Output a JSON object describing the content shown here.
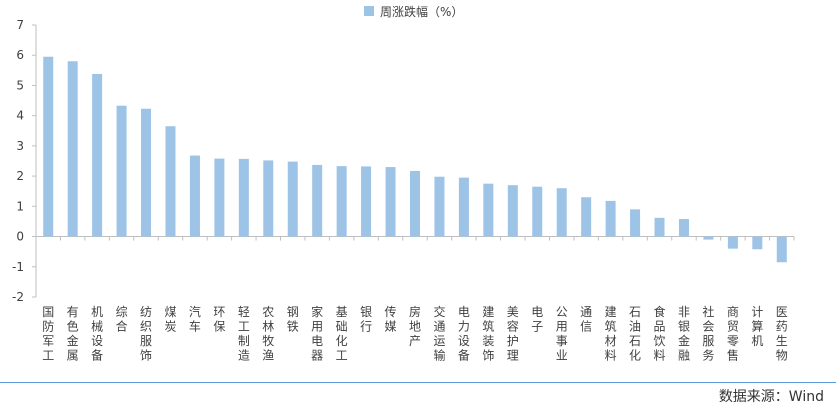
{
  "chart_data": {
    "type": "bar",
    "legend": {
      "label": "周涨跌幅（%）",
      "position": "top-center"
    },
    "categories": [
      "国防军工",
      "有色金属",
      "机械设备",
      "综合",
      "纺织服饰",
      "煤炭",
      "汽车",
      "环保",
      "轻工制造",
      "农林牧渔",
      "钢铁",
      "家用电器",
      "基础化工",
      "银行",
      "传媒",
      "房地产",
      "交通运输",
      "电力设备",
      "建筑装饰",
      "美容护理",
      "电子",
      "公用事业",
      "通信",
      "建筑材料",
      "石油石化",
      "食品饮料",
      "非银金融",
      "社会服务",
      "商贸零售",
      "计算机",
      "医药生物"
    ],
    "values": [
      5.95,
      5.8,
      5.38,
      4.33,
      4.23,
      3.65,
      2.68,
      2.58,
      2.57,
      2.52,
      2.48,
      2.37,
      2.33,
      2.32,
      2.3,
      2.17,
      1.98,
      1.95,
      1.75,
      1.7,
      1.65,
      1.6,
      1.3,
      1.18,
      0.9,
      0.62,
      0.58,
      -0.1,
      -0.4,
      -0.42,
      -0.85
    ],
    "ylim": [
      -2,
      7
    ],
    "yticks": [
      -2,
      -1,
      0,
      1,
      2,
      3,
      4,
      5,
      6,
      7
    ],
    "grid": false,
    "colors": {
      "bar": "#9dc3e6",
      "axis": "#bfbfbf",
      "text": "#404040"
    }
  },
  "source": "数据来源：Wind"
}
